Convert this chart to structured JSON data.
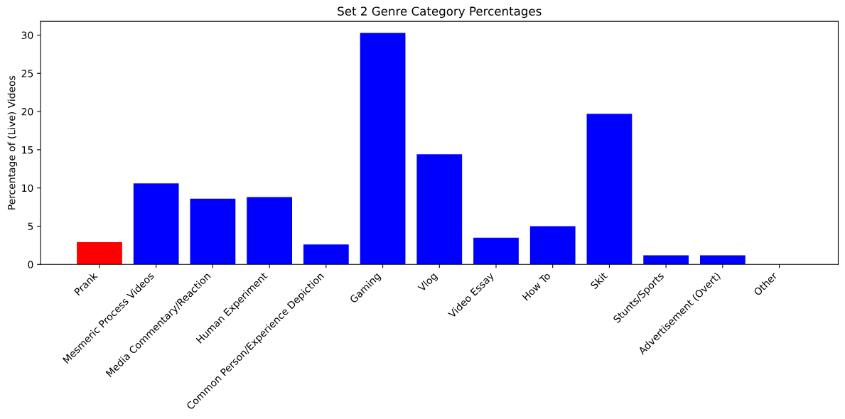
{
  "chart_data": {
    "type": "bar",
    "title": "Set 2 Genre Category Percentages",
    "ylabel": "Percentage of (Live) Videos",
    "categories": [
      "Prank",
      "Mesmeric Process Videos",
      "Media Commentary/Reaction",
      "Human Experiment",
      "Common Person/Experience Depiction",
      "Gaming",
      "Vlog",
      "Video Essay",
      "How To",
      "Skit",
      "Stunts/Sports",
      "Advertisement (Overt)",
      "Other"
    ],
    "values": [
      2.9,
      10.6,
      8.6,
      8.8,
      2.6,
      30.3,
      14.4,
      3.5,
      5.0,
      19.7,
      1.2,
      1.2,
      0
    ],
    "colors": [
      "#ff0000",
      "#0000ff",
      "#0000ff",
      "#0000ff",
      "#0000ff",
      "#0000ff",
      "#0000ff",
      "#0000ff",
      "#0000ff",
      "#0000ff",
      "#0000ff",
      "#0000ff",
      "#0000ff"
    ],
    "ylim": [
      0,
      31.8
    ],
    "yticks": [
      0,
      5,
      10,
      15,
      20,
      25,
      30
    ]
  }
}
